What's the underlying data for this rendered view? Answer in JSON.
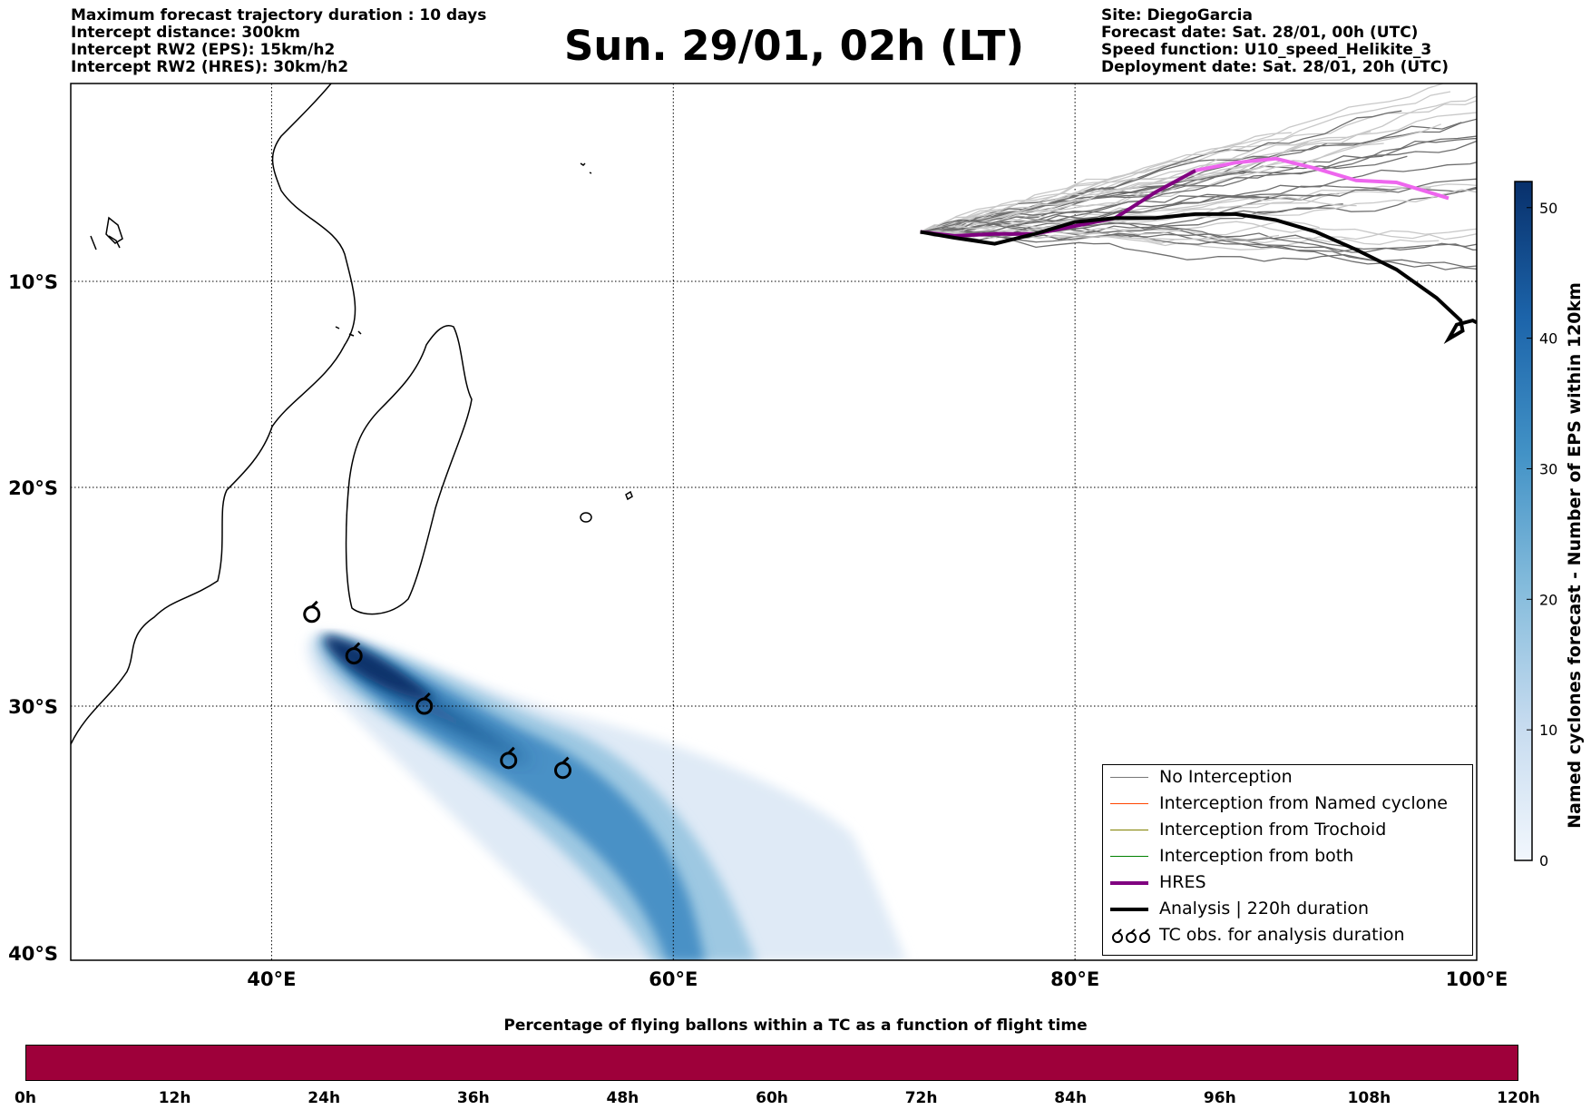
{
  "header": {
    "left_lines": [
      "Maximum forecast trajectory duration : 10 days",
      "Intercept distance: 300km",
      "Intercept RW2 (EPS):  15km/h2",
      "Intercept RW2 (HRES): 30km/h2"
    ],
    "title": "Sun. 29/01, 02h (LT)",
    "right_lines": [
      "Site: DiegoGarcia",
      "Forecast date: Sat. 28/01, 00h (UTC)",
      "Speed function: U10_speed_Helikite_3",
      "Deployment date: Sat. 28/01, 20h (UTC)"
    ]
  },
  "map": {
    "lon_range": [
      30,
      100
    ],
    "lat_range": [
      -40,
      0
    ],
    "lon_ticks": [
      {
        "v": 40,
        "label": "40°E"
      },
      {
        "v": 60,
        "label": "60°E"
      },
      {
        "v": 80,
        "label": "80°E"
      },
      {
        "v": 100,
        "label": "100°E"
      }
    ],
    "lat_ticks": [
      {
        "v": -10,
        "label": "10°S"
      },
      {
        "v": -20,
        "label": "20°S"
      },
      {
        "v": -30,
        "label": "30°S"
      },
      {
        "v": -40,
        "label": "40°S"
      }
    ],
    "gridlines": "dotted"
  },
  "colorbar": {
    "label": "Named cyclones forecast - Number of EPS within 120km",
    "min": 0,
    "max": 52,
    "ticks": [
      "0",
      "10",
      "20",
      "30",
      "40",
      "50"
    ],
    "colormap": "Blues"
  },
  "legend": {
    "items": [
      {
        "label": "No Interception",
        "color": "#777777",
        "width": 1.5
      },
      {
        "label": "Interception from Named cyclone",
        "color": "#ff4500",
        "width": 1.5
      },
      {
        "label": "Interception from Trochoid",
        "color": "#808000",
        "width": 1.5
      },
      {
        "label": "Interception from both",
        "color": "#008000",
        "width": 1.5
      },
      {
        "label": "HRES",
        "color": "#800080",
        "width": 4
      },
      {
        "label": "Analysis | 220h duration",
        "color": "#000000",
        "width": 4
      },
      {
        "label": "TC obs. for analysis duration",
        "color": "#000000",
        "symbol": "cyclone-icons"
      }
    ]
  },
  "tc_observations": [
    {
      "lon": 42.0,
      "lat": -25.8
    },
    {
      "lon": 44.1,
      "lat": -27.7
    },
    {
      "lon": 47.6,
      "lat": -30.0
    },
    {
      "lon": 51.8,
      "lat": -32.2
    },
    {
      "lon": 54.5,
      "lat": -32.6
    }
  ],
  "hres_track": [
    [
      72.3,
      -7.5
    ],
    [
      74,
      -7.7
    ],
    [
      76,
      -7.6
    ],
    [
      78,
      -7.6
    ],
    [
      80,
      -7.2
    ],
    [
      82,
      -6.8
    ],
    [
      84,
      -5.5
    ],
    [
      86,
      -4.4
    ],
    [
      88,
      -4.0
    ],
    [
      90,
      -3.8
    ],
    [
      92,
      -4.3
    ],
    [
      94,
      -4.9
    ],
    [
      96,
      -5.0
    ],
    [
      98.6,
      -5.8
    ]
  ],
  "analysis_track": [
    [
      72.3,
      -7.5
    ],
    [
      74,
      -7.8
    ],
    [
      76,
      -8.1
    ],
    [
      78,
      -7.6
    ],
    [
      80,
      -7.0
    ],
    [
      82,
      -6.8
    ],
    [
      84,
      -6.8
    ],
    [
      86,
      -6.6
    ],
    [
      88,
      -6.6
    ],
    [
      90,
      -6.9
    ],
    [
      92,
      -7.5
    ],
    [
      94,
      -8.4
    ],
    [
      96,
      -9.4
    ],
    [
      98,
      -10.8
    ],
    [
      99.2,
      -11.9
    ],
    [
      99.3,
      -12.4
    ],
    [
      98.6,
      -12.8
    ],
    [
      99.0,
      -12.1
    ],
    [
      99.8,
      -11.9
    ],
    [
      100.0,
      -12.0
    ]
  ],
  "percentage_bar": {
    "title": "Percentage of flying ballons within a TC as a function of flight time",
    "color": "#9e003a",
    "ticks": [
      "0h",
      "12h",
      "24h",
      "36h",
      "48h",
      "60h",
      "72h",
      "84h",
      "96h",
      "108h",
      "120h"
    ]
  }
}
